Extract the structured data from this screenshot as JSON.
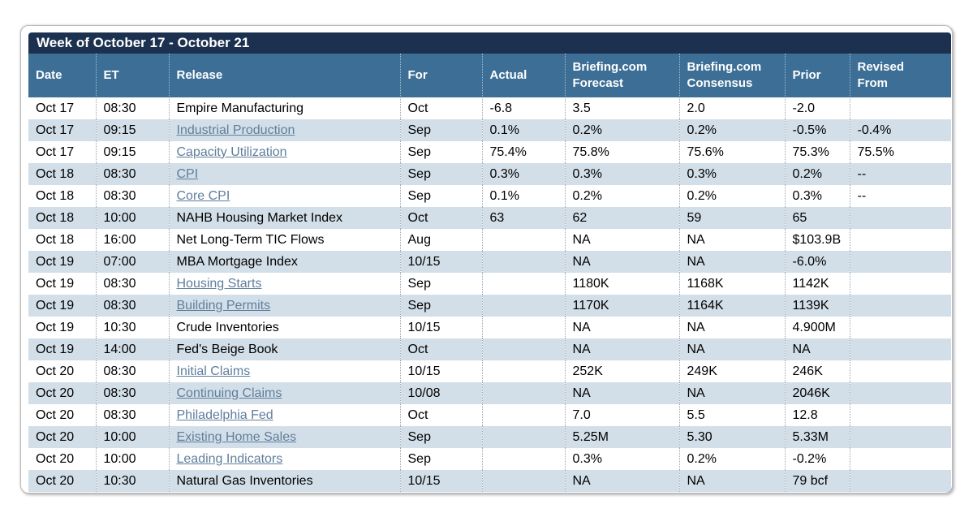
{
  "panel": {
    "title": "Week of October 17 - October 21"
  },
  "colors": {
    "title_bar_bg": "#1c314f",
    "header_bg": "#3d6f96",
    "alt_row_bg": "#d3dfe8",
    "link_text": "#5f7e9c",
    "header_text": "#ffffff",
    "body_text": "#000000"
  },
  "table": {
    "columns": [
      "Date",
      "ET",
      "Release",
      "For",
      "Actual",
      "Briefing.com\nForecast",
      "Briefing.com\nConsensus",
      "Prior",
      "Revised\nFrom"
    ],
    "rows": [
      {
        "date": "Oct 17",
        "et": "08:30",
        "release": "Empire Manufacturing",
        "link": false,
        "for": "Oct",
        "actual": "-6.8",
        "forecast": "3.5",
        "consensus": "2.0",
        "prior": "-2.0",
        "revised": ""
      },
      {
        "date": "Oct 17",
        "et": "09:15",
        "release": "Industrial Production",
        "link": true,
        "for": "Sep",
        "actual": "0.1%",
        "forecast": "0.2%",
        "consensus": "0.2%",
        "prior": "-0.5%",
        "revised": "-0.4%"
      },
      {
        "date": "Oct 17",
        "et": "09:15",
        "release": "Capacity Utilization",
        "link": true,
        "for": "Sep",
        "actual": "75.4%",
        "forecast": "75.8%",
        "consensus": "75.6%",
        "prior": "75.3%",
        "revised": "75.5%"
      },
      {
        "date": "Oct 18",
        "et": "08:30",
        "release": "CPI",
        "link": true,
        "for": "Sep",
        "actual": "0.3%",
        "forecast": "0.3%",
        "consensus": "0.3%",
        "prior": "0.2%",
        "revised": "--"
      },
      {
        "date": "Oct 18",
        "et": "08:30",
        "release": "Core CPI",
        "link": true,
        "for": "Sep",
        "actual": "0.1%",
        "forecast": "0.2%",
        "consensus": "0.2%",
        "prior": "0.3%",
        "revised": "--"
      },
      {
        "date": "Oct 18",
        "et": "10:00",
        "release": "NAHB Housing Market Index",
        "link": false,
        "for": "Oct",
        "actual": "63",
        "forecast": "62",
        "consensus": "59",
        "prior": "65",
        "revised": ""
      },
      {
        "date": "Oct 18",
        "et": "16:00",
        "release": "Net Long-Term TIC Flows",
        "link": false,
        "for": "Aug",
        "actual": "",
        "forecast": "NA",
        "consensus": "NA",
        "prior": "$103.9B",
        "revised": ""
      },
      {
        "date": "Oct 19",
        "et": "07:00",
        "release": "MBA Mortgage Index",
        "link": false,
        "for": "10/15",
        "actual": "",
        "forecast": "NA",
        "consensus": "NA",
        "prior": "-6.0%",
        "revised": ""
      },
      {
        "date": "Oct 19",
        "et": "08:30",
        "release": "Housing Starts",
        "link": true,
        "for": "Sep",
        "actual": "",
        "forecast": "1180K",
        "consensus": "1168K",
        "prior": "1142K",
        "revised": ""
      },
      {
        "date": "Oct 19",
        "et": "08:30",
        "release": "Building Permits",
        "link": true,
        "for": "Sep",
        "actual": "",
        "forecast": "1170K",
        "consensus": "1164K",
        "prior": "1139K",
        "revised": ""
      },
      {
        "date": "Oct 19",
        "et": "10:30",
        "release": "Crude Inventories",
        "link": false,
        "for": "10/15",
        "actual": "",
        "forecast": "NA",
        "consensus": "NA",
        "prior": "4.900M",
        "revised": ""
      },
      {
        "date": "Oct 19",
        "et": "14:00",
        "release": "Fed's Beige Book",
        "link": false,
        "for": "Oct",
        "actual": "",
        "forecast": "NA",
        "consensus": "NA",
        "prior": "NA",
        "revised": ""
      },
      {
        "date": "Oct 20",
        "et": "08:30",
        "release": "Initial Claims",
        "link": true,
        "for": "10/15",
        "actual": "",
        "forecast": "252K",
        "consensus": "249K",
        "prior": "246K",
        "revised": ""
      },
      {
        "date": "Oct 20",
        "et": "08:30",
        "release": "Continuing Claims",
        "link": true,
        "for": "10/08",
        "actual": "",
        "forecast": "NA",
        "consensus": "NA",
        "prior": "2046K",
        "revised": ""
      },
      {
        "date": "Oct 20",
        "et": "08:30",
        "release": "Philadelphia Fed",
        "link": true,
        "for": "Oct",
        "actual": "",
        "forecast": "7.0",
        "consensus": "5.5",
        "prior": "12.8",
        "revised": ""
      },
      {
        "date": "Oct 20",
        "et": "10:00",
        "release": "Existing Home Sales",
        "link": true,
        "for": "Sep",
        "actual": "",
        "forecast": "5.25M",
        "consensus": "5.30",
        "prior": "5.33M",
        "revised": ""
      },
      {
        "date": "Oct 20",
        "et": "10:00",
        "release": "Leading Indicators",
        "link": true,
        "for": "Sep",
        "actual": "",
        "forecast": "0.3%",
        "consensus": "0.2%",
        "prior": "-0.2%",
        "revised": ""
      },
      {
        "date": "Oct 20",
        "et": "10:30",
        "release": "Natural Gas Inventories",
        "link": false,
        "for": "10/15",
        "actual": "",
        "forecast": "NA",
        "consensus": "NA",
        "prior": "79 bcf",
        "revised": ""
      }
    ]
  }
}
